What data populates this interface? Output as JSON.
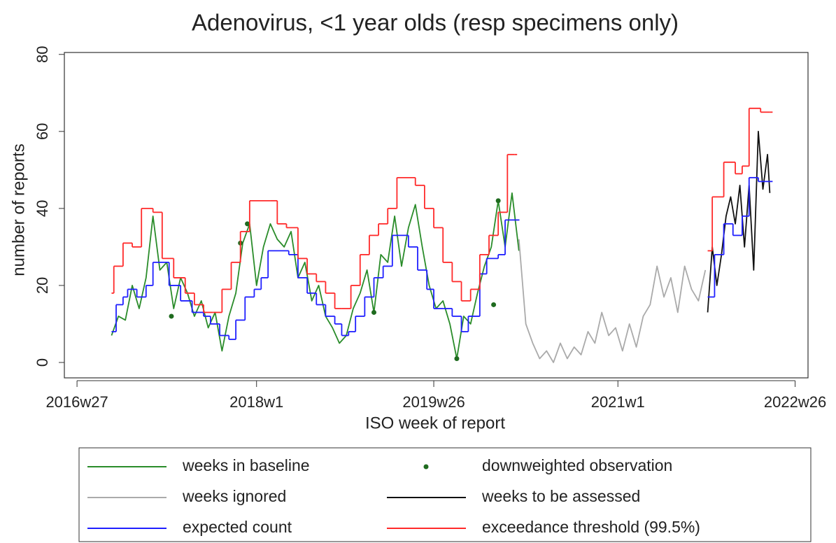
{
  "chart_data": {
    "type": "line",
    "title": "Adenovirus, <1 year olds (resp specimens only)",
    "x_label": "ISO week of report",
    "y_label": "number of reports",
    "xlim": [
      -5.5,
      317.6
    ],
    "ylim": [
      -4,
      80.5
    ],
    "xticks": [
      {
        "value": 0,
        "label": "2016w27"
      },
      {
        "value": 78,
        "label": "2018w1"
      },
      {
        "value": 155,
        "label": "2019w26"
      },
      {
        "value": 235,
        "label": "2021w1"
      },
      {
        "value": 312,
        "label": "2022w26"
      }
    ],
    "yticks": [
      0,
      20,
      40,
      60,
      80
    ],
    "grid": false,
    "legend": "bottom",
    "series": [
      {
        "name": "weeks in baseline",
        "color": "#2a8c2a",
        "style": "line",
        "x": [
          15,
          18,
          21,
          24,
          27,
          30,
          33,
          36,
          39,
          42,
          45,
          48,
          51,
          54,
          57,
          60,
          63,
          66,
          69,
          72,
          75,
          78,
          81,
          84,
          87,
          90,
          93,
          96,
          99,
          102,
          105,
          108,
          111,
          114,
          117,
          120,
          123,
          126,
          129,
          132,
          135,
          138,
          141,
          144,
          147,
          150,
          153,
          156,
          159,
          162,
          165,
          168,
          171,
          174,
          177,
          180,
          183,
          186,
          189,
          192
        ],
        "values": [
          7,
          12,
          11,
          20,
          14,
          22,
          38,
          24,
          26,
          14,
          22,
          18,
          12,
          16,
          9,
          13,
          3,
          12,
          18,
          31,
          36,
          20,
          30,
          36,
          32,
          30,
          34,
          22,
          26,
          16,
          20,
          12,
          9,
          5,
          7,
          14,
          18,
          24,
          13,
          28,
          26,
          38,
          25,
          35,
          41,
          30,
          20,
          14,
          16,
          10,
          1,
          12,
          10,
          18,
          25,
          30,
          42,
          30,
          44,
          29
        ]
      },
      {
        "name": "downweighted observation",
        "color": "#1f6b1f",
        "style": "points",
        "x": [
          41,
          71,
          74,
          129,
          165,
          181,
          183
        ],
        "values": [
          12,
          31,
          36,
          13,
          1,
          15,
          42
        ]
      },
      {
        "name": "weeks ignored",
        "color": "#aaaaaa",
        "style": "line",
        "x": [
          192,
          195,
          198,
          201,
          204,
          207,
          210,
          213,
          216,
          219,
          222,
          225,
          228,
          231,
          234,
          237,
          240,
          243,
          246,
          249,
          252,
          255,
          258,
          261,
          264,
          267,
          270,
          273
        ],
        "values": [
          32,
          10,
          5,
          1,
          3,
          0,
          5,
          1,
          4,
          2,
          8,
          5,
          13,
          7,
          9,
          3,
          10,
          4,
          12,
          15,
          25,
          17,
          22,
          13,
          25,
          19,
          16,
          24
        ]
      },
      {
        "name": "weeks to be assessed",
        "color": "#111111",
        "style": "line",
        "x": [
          274,
          276,
          278,
          280,
          282,
          284,
          286,
          288,
          290,
          292,
          294,
          296,
          298,
          300,
          301
        ],
        "values": [
          13,
          30,
          20,
          28,
          38,
          43,
          36,
          46,
          30,
          46,
          24,
          60,
          45,
          54,
          44
        ]
      },
      {
        "name": "expected count",
        "color": "#1f1fff",
        "style": "step",
        "x": [
          15,
          17,
          20,
          22,
          26,
          30,
          33,
          40,
          45,
          50,
          55,
          58,
          62,
          66,
          69,
          73,
          77,
          80,
          83,
          92,
          96,
          100,
          104,
          108,
          112,
          115,
          118,
          121,
          125,
          129,
          133,
          137,
          144,
          148,
          152,
          155,
          159,
          163,
          167,
          170,
          175,
          178,
          183,
          186,
          191,
          null,
          274,
          277,
          281,
          285,
          289,
          292,
          296,
          301
        ],
        "values": [
          8,
          15,
          17,
          19,
          17,
          20,
          26,
          20,
          16,
          13,
          12,
          10,
          7,
          6,
          11,
          17,
          19,
          22,
          29,
          28,
          22,
          18,
          15,
          12,
          10,
          7,
          8,
          12,
          17,
          22,
          25,
          33,
          30,
          24,
          19,
          14,
          14,
          12,
          8,
          12,
          23,
          27,
          28,
          37,
          37,
          null,
          17,
          28,
          36,
          33,
          38,
          48,
          47,
          47
        ]
      },
      {
        "name": "exceedance threshold (99.5%)",
        "color": "#ff2a2a",
        "style": "step",
        "x": [
          15,
          16,
          20,
          24,
          28,
          33,
          37,
          42,
          47,
          51,
          55,
          59,
          63,
          67,
          71,
          75,
          84,
          87,
          91,
          96,
          100,
          104,
          108,
          112,
          115,
          119,
          123,
          127,
          131,
          135,
          139,
          147,
          151,
          155,
          159,
          163,
          167,
          171,
          175,
          179,
          183,
          187,
          190,
          null,
          274,
          276,
          281,
          286,
          289,
          292,
          297,
          301
        ],
        "values": [
          18,
          25,
          31,
          30,
          40,
          39,
          27,
          22,
          18,
          15,
          13,
          13,
          19,
          26,
          34,
          42,
          42,
          36,
          35,
          27,
          23,
          21,
          18,
          14,
          14,
          20,
          28,
          33,
          36,
          40,
          48,
          46,
          40,
          35,
          26,
          21,
          16,
          19,
          28,
          33,
          39,
          54,
          54,
          null,
          29,
          43,
          52,
          49,
          51,
          66,
          65,
          65
        ]
      }
    ]
  }
}
